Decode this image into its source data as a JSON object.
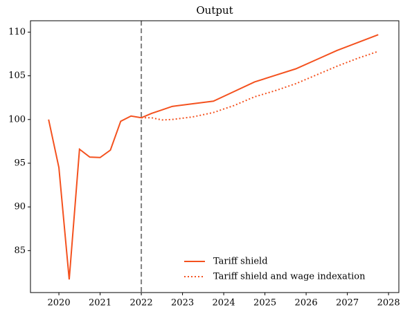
{
  "chart_data": {
    "type": "line",
    "title": "Output",
    "x": [
      2019.75,
      2020,
      2020.25,
      2020.5,
      2020.75,
      2021,
      2021.25,
      2021.5,
      2021.75,
      2022,
      2022.25,
      2022.5,
      2022.75,
      2023.25,
      2023.75,
      2024.25,
      2024.75,
      2025.25,
      2025.75,
      2026.25,
      2026.75,
      2027.25,
      2027.75
    ],
    "series": [
      {
        "name": "Tariff shield",
        "color": "#f4511e",
        "style": "solid",
        "values": [
          100,
          94.5,
          81.7,
          96.6,
          95.7,
          95.65,
          96.5,
          99.8,
          100.4,
          100.2,
          100.7,
          101.1,
          101.5,
          101.8,
          102.1,
          103.2,
          104.3,
          105.05,
          105.8,
          106.85,
          107.9,
          108.8,
          109.7
        ]
      },
      {
        "name": "Tariff shield and wage indexation",
        "color": "#f4511e",
        "style": "dotted",
        "values": [
          null,
          null,
          null,
          null,
          null,
          null,
          null,
          null,
          null,
          100.2,
          100.2,
          99.95,
          100.0,
          100.3,
          100.8,
          101.6,
          102.6,
          103.3,
          104.1,
          105.1,
          106.1,
          107.0,
          107.8
        ]
      }
    ],
    "xlim": [
      2019.31,
      2028.25
    ],
    "xticks": [
      2020,
      2021,
      2022,
      2023,
      2024,
      2025,
      2026,
      2027,
      2028
    ],
    "ylim": [
      80.2,
      111.3
    ],
    "yticks": [
      85,
      90,
      95,
      100,
      105,
      110
    ],
    "vline": 2022,
    "vline_color": "#808080",
    "legend": "lower right"
  }
}
